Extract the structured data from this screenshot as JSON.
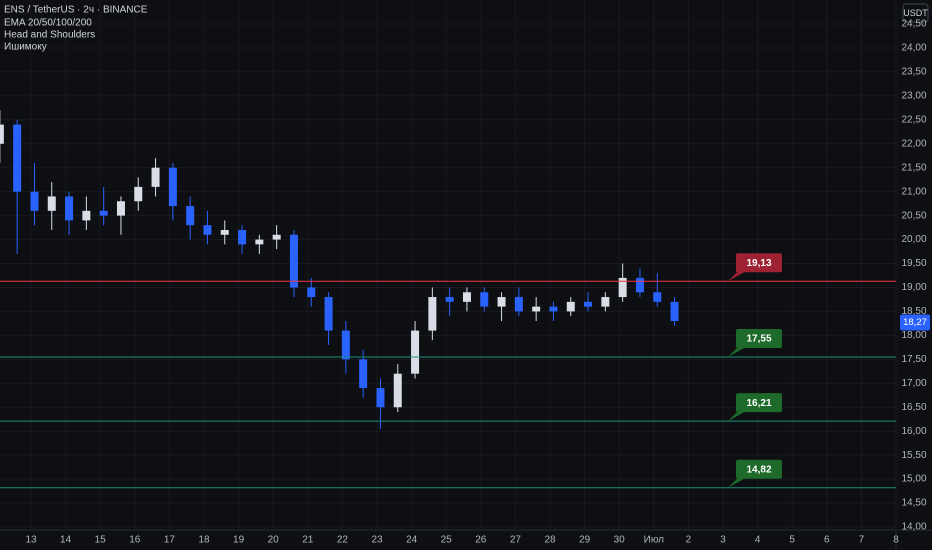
{
  "chart_data": {
    "type": "candlestick",
    "title": "ENS / TetherUS · 2ч · BINANCE",
    "indicators": [
      "EMA 20/50/100/200",
      "Head and Shoulders",
      "Ишимоку"
    ],
    "currency": "USDT",
    "up_color": "#d9dde6",
    "down_color": "#2962ff",
    "open": [
      22.0,
      22.4,
      21.0,
      20.6,
      20.9,
      20.4,
      20.6,
      20.5,
      20.8,
      21.1,
      21.5,
      20.7,
      20.3,
      20.1,
      20.2,
      19.9,
      20.0,
      20.1,
      19.0,
      18.8,
      18.1,
      17.5,
      16.9,
      16.5,
      17.2,
      18.1,
      18.8,
      18.7,
      18.9,
      18.6,
      18.8,
      18.5,
      18.6,
      18.5,
      18.7,
      18.6,
      18.8,
      19.2,
      18.9,
      18.7
    ],
    "high": [
      22.7,
      22.5,
      21.6,
      21.2,
      21.0,
      20.9,
      21.1,
      20.9,
      21.3,
      21.7,
      21.6,
      20.9,
      20.6,
      20.4,
      20.3,
      20.1,
      20.3,
      20.2,
      19.2,
      18.9,
      18.3,
      17.7,
      17.1,
      17.4,
      18.3,
      19.0,
      19.0,
      19.0,
      19.0,
      18.9,
      19.0,
      18.8,
      18.7,
      18.8,
      18.9,
      18.9,
      19.5,
      19.4,
      19.3,
      18.8
    ],
    "low": [
      21.6,
      19.7,
      20.3,
      20.2,
      20.1,
      20.2,
      20.3,
      20.1,
      20.6,
      20.9,
      20.4,
      20.0,
      19.9,
      19.9,
      19.7,
      19.7,
      19.8,
      18.8,
      18.6,
      17.8,
      17.2,
      16.7,
      16.05,
      16.4,
      17.1,
      17.9,
      18.4,
      18.5,
      18.5,
      18.3,
      18.4,
      18.3,
      18.3,
      18.4,
      18.5,
      18.5,
      18.7,
      18.8,
      18.6,
      18.2
    ],
    "close": [
      22.4,
      21.0,
      20.6,
      20.9,
      20.4,
      20.6,
      20.5,
      20.8,
      21.1,
      21.5,
      20.7,
      20.3,
      20.1,
      20.2,
      19.9,
      20.0,
      20.1,
      19.0,
      18.8,
      18.1,
      17.5,
      16.9,
      16.5,
      17.2,
      18.1,
      18.8,
      18.7,
      18.9,
      18.6,
      18.8,
      18.5,
      18.6,
      18.5,
      18.7,
      18.6,
      18.8,
      19.2,
      18.9,
      18.7,
      18.3
    ],
    "levels": {
      "values": [
        19.13,
        17.55,
        16.21,
        14.82
      ],
      "value_labels": [
        "19,13",
        "17,55",
        "16,21",
        "14,82"
      ],
      "line_colors": [
        "#f23645",
        "#1f8f7a",
        "#1f8f7a",
        "#1f8f7a"
      ],
      "box_colors": [
        "#9e2232",
        "#1d6a2a",
        "#1d6a2a",
        "#1d6a2a"
      ]
    },
    "last_price": {
      "value": 18.27,
      "label": "18,27"
    },
    "ylim": [
      14.0,
      24.5
    ],
    "yticks": [
      {
        "value": 14.0,
        "label": "14,00"
      },
      {
        "value": 14.5,
        "label": "14,50"
      },
      {
        "value": 15.0,
        "label": "15,00"
      },
      {
        "value": 15.5,
        "label": "15,50"
      },
      {
        "value": 16.0,
        "label": "16,00"
      },
      {
        "value": 16.5,
        "label": "16,50"
      },
      {
        "value": 17.0,
        "label": "17,00"
      },
      {
        "value": 17.5,
        "label": "17,50"
      },
      {
        "value": 18.0,
        "label": "18,00"
      },
      {
        "value": 18.5,
        "label": "18,50"
      },
      {
        "value": 19.0,
        "label": "19,00"
      },
      {
        "value": 19.5,
        "label": "19,50"
      },
      {
        "value": 20.0,
        "label": "20,00"
      },
      {
        "value": 20.5,
        "label": "20,50"
      },
      {
        "value": 21.0,
        "label": "21,00"
      },
      {
        "value": 21.5,
        "label": "21,50"
      },
      {
        "value": 22.0,
        "label": "22,00"
      },
      {
        "value": 22.5,
        "label": "22,50"
      },
      {
        "value": 23.0,
        "label": "23,00"
      },
      {
        "value": 23.5,
        "label": "23,50"
      },
      {
        "value": 24.0,
        "label": "24,00"
      },
      {
        "value": 24.5,
        "label": "24,50"
      }
    ],
    "xticks": [
      "13",
      "14",
      "15",
      "16",
      "17",
      "18",
      "19",
      "20",
      "21",
      "22",
      "23",
      "24",
      "25",
      "26",
      "27",
      "28",
      "29",
      "30",
      "Июл",
      "2",
      "3",
      "4",
      "5",
      "6",
      "7",
      "8"
    ],
    "grid": true
  }
}
